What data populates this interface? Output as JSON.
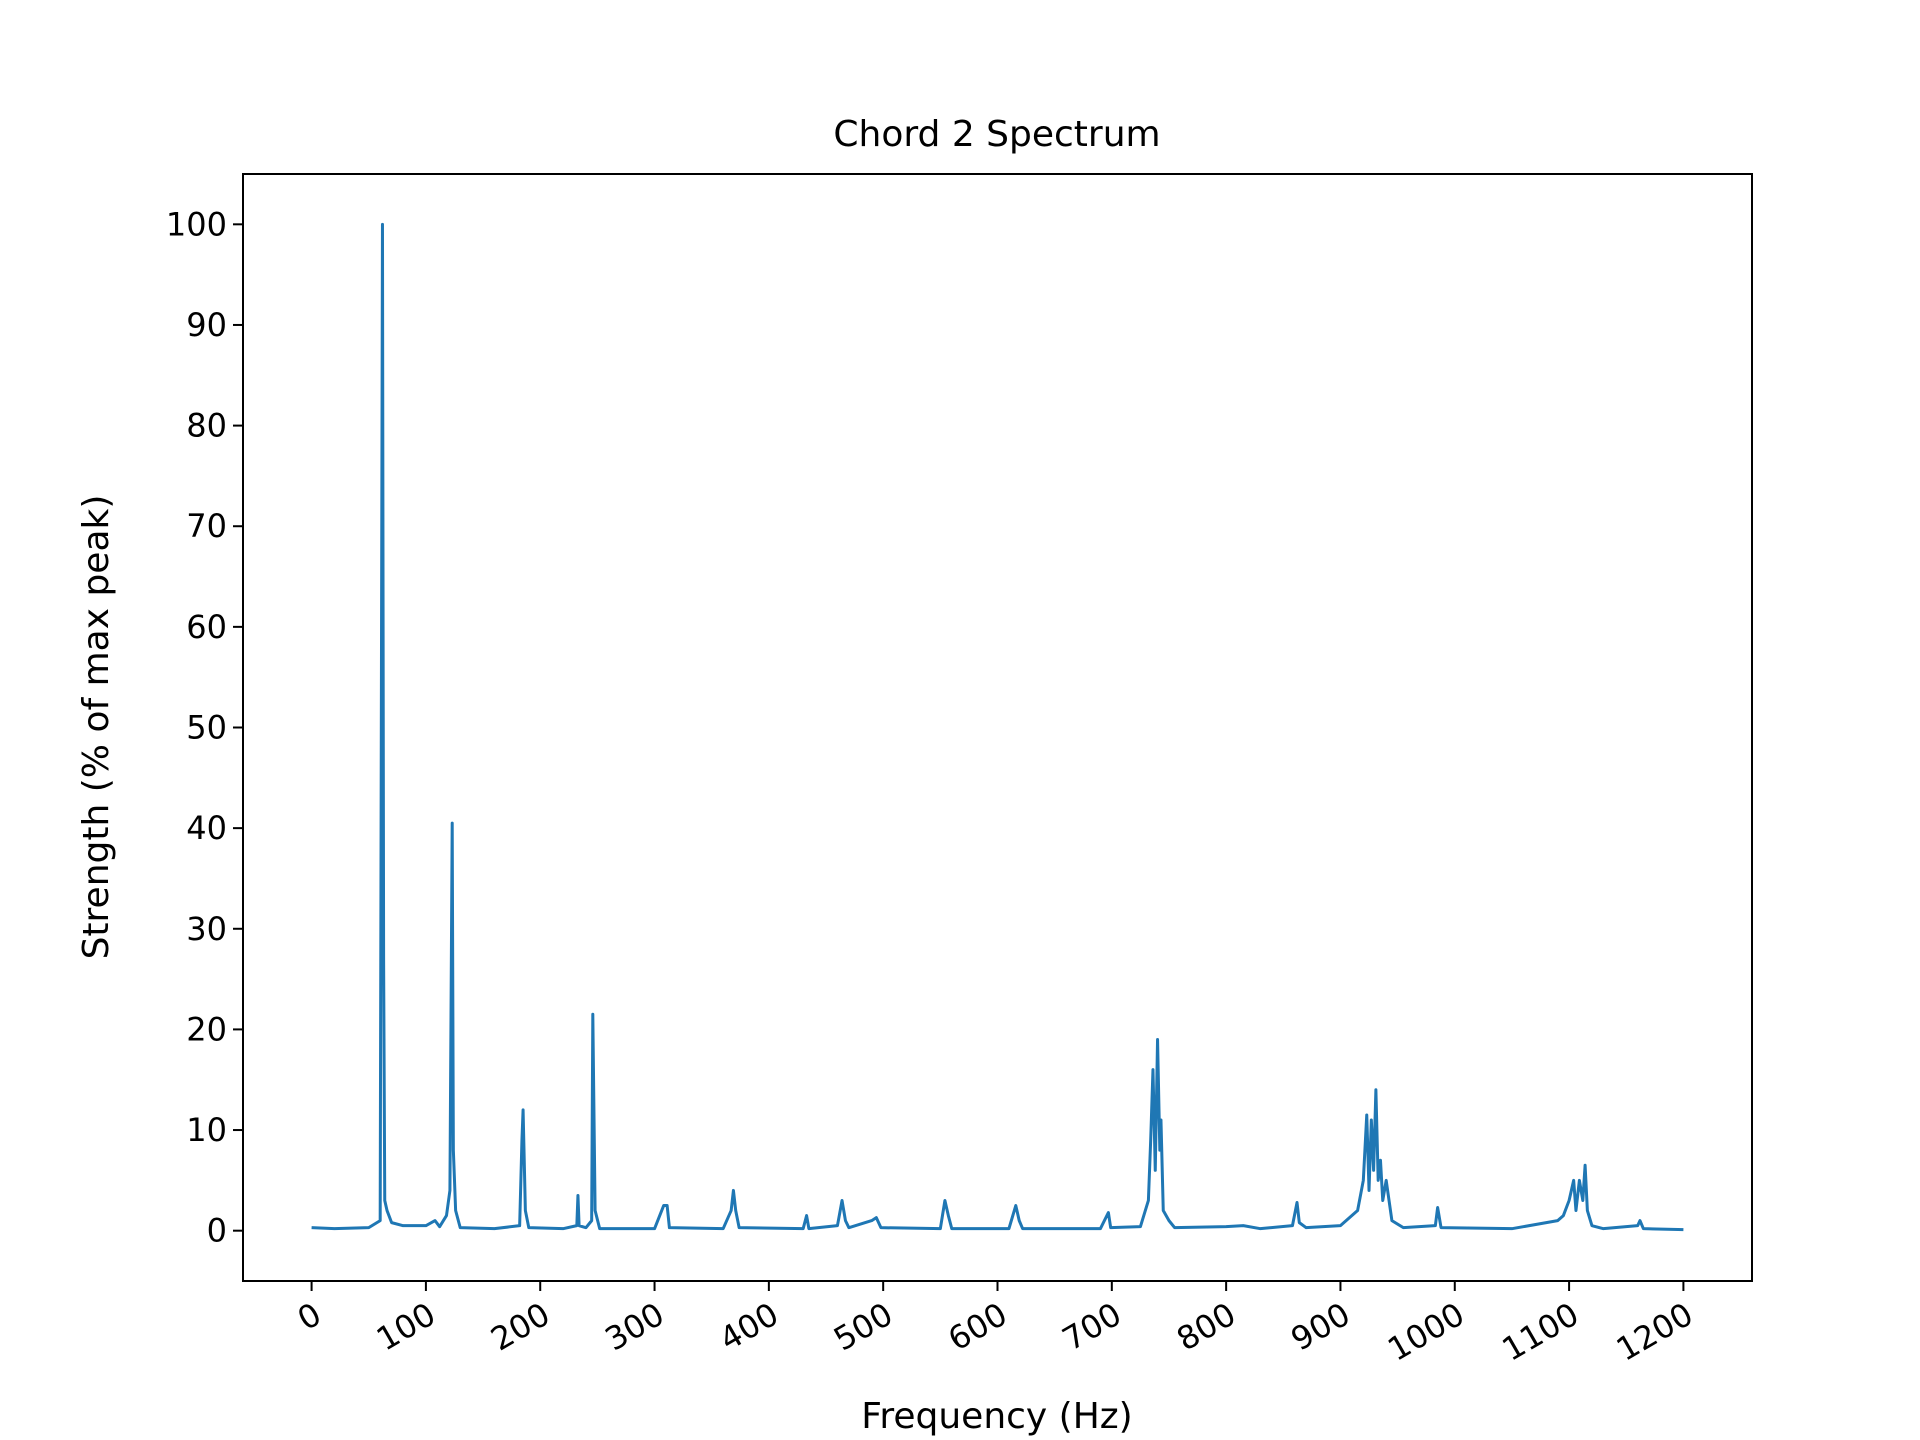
{
  "chart_data": {
    "type": "line",
    "title": "Chord 2 Spectrum",
    "xlabel": "Frequency (Hz)",
    "ylabel": "Strength (% of max peak)",
    "xlim": [
      -60,
      1260
    ],
    "ylim": [
      -5,
      105
    ],
    "xticks": [
      0,
      100,
      200,
      300,
      400,
      500,
      600,
      700,
      800,
      900,
      1000,
      1100,
      1200
    ],
    "yticks": [
      0,
      10,
      20,
      30,
      40,
      50,
      60,
      70,
      80,
      90,
      100
    ],
    "series": [
      {
        "color": "#1f77b4",
        "x": [
          0,
          20,
          50,
          60,
          62,
          63,
          64,
          66,
          70,
          80,
          100,
          108,
          112,
          118,
          121,
          123,
          124,
          126,
          130,
          160,
          182,
          184,
          185,
          187,
          190,
          220,
          232,
          233,
          234,
          240,
          245,
          246,
          248,
          252,
          300,
          308,
          311,
          313,
          360,
          367,
          369,
          371,
          374,
          430,
          433,
          435,
          460,
          464,
          467,
          470,
          490,
          494,
          498,
          550,
          554,
          557,
          560,
          610,
          616,
          619,
          622,
          690,
          697,
          699,
          725,
          732,
          734,
          736,
          738,
          740,
          742,
          743,
          745,
          750,
          755,
          800,
          815,
          830,
          858,
          862,
          864,
          870,
          900,
          915,
          920,
          923,
          925,
          927,
          929,
          931,
          933,
          935,
          937,
          940,
          945,
          955,
          983,
          985,
          988,
          1050,
          1090,
          1095,
          1100,
          1104,
          1106,
          1109,
          1112,
          1114,
          1116,
          1120,
          1130,
          1160,
          1162,
          1165,
          1200
        ],
        "values": [
          0.3,
          0.2,
          0.3,
          1,
          100,
          27,
          3,
          2,
          0.8,
          0.5,
          0.5,
          1,
          0.4,
          1.5,
          4,
          40.5,
          8,
          2,
          0.3,
          0.2,
          0.5,
          9,
          12,
          2,
          0.3,
          0.2,
          0.5,
          3.5,
          0.5,
          0.3,
          1,
          21.5,
          2,
          0.2,
          0.2,
          2.5,
          2.5,
          0.3,
          0.2,
          2,
          4,
          2,
          0.3,
          0.2,
          1.5,
          0.2,
          0.5,
          3,
          1,
          0.3,
          1,
          1.3,
          0.3,
          0.2,
          3,
          1.5,
          0.2,
          0.2,
          2.5,
          1,
          0.2,
          0.2,
          1.8,
          0.3,
          0.4,
          3,
          9,
          16,
          6,
          19,
          8,
          11,
          2,
          1,
          0.3,
          0.4,
          0.5,
          0.2,
          0.5,
          2.8,
          0.8,
          0.3,
          0.5,
          2,
          5,
          11.5,
          4,
          11,
          6,
          14,
          5,
          7,
          3,
          5,
          1,
          0.3,
          0.5,
          2.3,
          0.3,
          0.2,
          1,
          1.5,
          3,
          5,
          2,
          5,
          3,
          6.5,
          2,
          0.5,
          0.2,
          0.5,
          1,
          0.2,
          0.1
        ]
      }
    ]
  }
}
